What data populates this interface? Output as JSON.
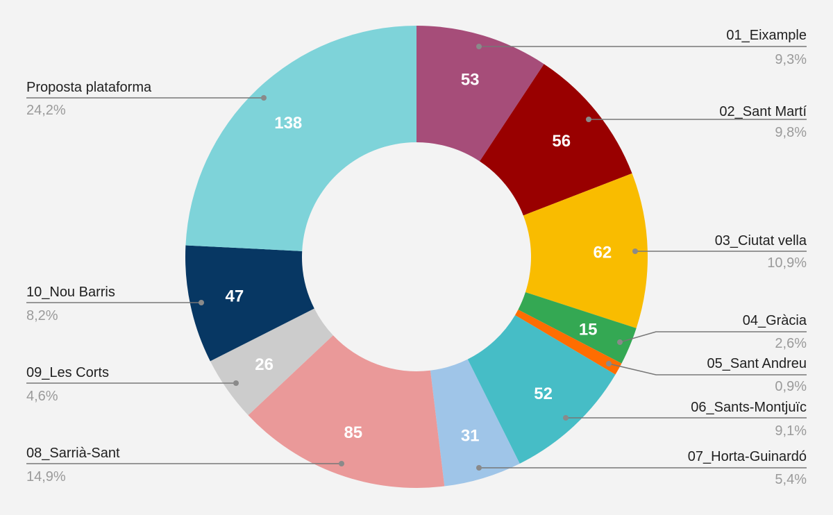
{
  "chart_data": {
    "type": "pie",
    "variant": "donut",
    "title": "",
    "start": "top, clockwise",
    "legend": "leader-line labels",
    "slices": [
      {
        "label": "01_Eixample",
        "value": 53,
        "percent": "9,3%",
        "color": "#a64d79",
        "show_value": true
      },
      {
        "label": "02_Sant Martí",
        "value": 56,
        "percent": "9,8%",
        "color": "#990000",
        "show_value": true
      },
      {
        "label": "03_Ciutat vella",
        "value": 62,
        "percent": "10,9%",
        "color": "#f9bc00",
        "show_value": true
      },
      {
        "label": "04_Gràcia",
        "value": 15,
        "percent": "2,6%",
        "color": "#34a853",
        "show_value": true
      },
      {
        "label": "05_Sant Andreu",
        "value": 5,
        "percent": "0,9%",
        "color": "#ff6d01",
        "show_value": false
      },
      {
        "label": "06_Sants-Montjuïc",
        "value": 52,
        "percent": "9,1%",
        "color": "#46bdc6",
        "show_value": true
      },
      {
        "label": "07_Horta-Guinardó",
        "value": 31,
        "percent": "5,4%",
        "color": "#9fc5e8",
        "show_value": true
      },
      {
        "label": "08_Sarrià-Sant",
        "value": 85,
        "percent": "14,9%",
        "color": "#ea9999",
        "show_value": true
      },
      {
        "label": "09_Les Corts",
        "value": 26,
        "percent": "4,6%",
        "color": "#cccccc",
        "show_value": true
      },
      {
        "label": "10_Nou Barris",
        "value": 47,
        "percent": "8,2%",
        "color": "#073763",
        "show_value": true
      },
      {
        "label": "Proposta plataforma",
        "value": 138,
        "percent": "24,2%",
        "color": "#7ed3d9",
        "show_value": true
      }
    ]
  }
}
